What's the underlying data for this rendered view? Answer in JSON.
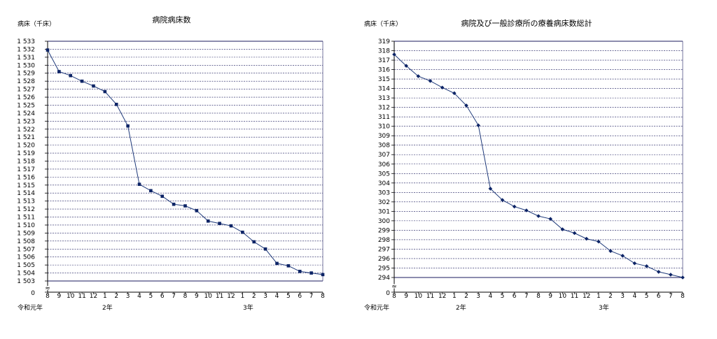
{
  "chart_data": [
    {
      "type": "line",
      "title": "病院病床数",
      "ylabel": "病床（千床）",
      "ylim": [
        1503,
        1533
      ],
      "axis_zero_label": "0",
      "y_ticks": [
        "1 503",
        "1 504",
        "1 505",
        "1 506",
        "1 507",
        "1 508",
        "1 509",
        "1 510",
        "1 511",
        "1 512",
        "1 513",
        "1 514",
        "1 515",
        "1 516",
        "1 517",
        "1 518",
        "1 519",
        "1 520",
        "1 521",
        "1 522",
        "1 523",
        "1 524",
        "1 525",
        "1 526",
        "1 527",
        "1 528",
        "1 529",
        "1 530",
        "1 531",
        "1 532",
        "1 533"
      ],
      "categories": [
        "8",
        "9",
        "10",
        "11",
        "12",
        "1",
        "2",
        "3",
        "4",
        "5",
        "6",
        "7",
        "8",
        "9",
        "10",
        "11",
        "12",
        "1",
        "2",
        "3",
        "4",
        "5",
        "6",
        "7",
        "8"
      ],
      "year_labels": [
        {
          "text": "令和元年",
          "index": 0
        },
        {
          "text": "2年",
          "index": 5
        },
        {
          "text": "3年",
          "index": 17
        }
      ],
      "grid": true,
      "series": [
        {
          "marker": "square",
          "values": [
            1531.9,
            1529.2,
            1528.7,
            1528.0,
            1527.4,
            1526.7,
            1525.1,
            1522.4,
            1515.1,
            1514.3,
            1513.6,
            1512.6,
            1512.4,
            1511.8,
            1510.5,
            1510.2,
            1509.9,
            1509.1,
            1507.9,
            1507.0,
            1505.2,
            1504.9,
            1504.2,
            1504.0,
            1503.8
          ]
        }
      ]
    },
    {
      "type": "line",
      "title": "病院及び一般診療所の療養病床数総計",
      "ylabel": "病床（千床）",
      "ylim": [
        294,
        319
      ],
      "axis_zero_label": "0",
      "y_ticks": [
        "294",
        "295",
        "296",
        "297",
        "298",
        "299",
        "300",
        "301",
        "302",
        "303",
        "304",
        "305",
        "306",
        "307",
        "308",
        "309",
        "310",
        "311",
        "312",
        "313",
        "314",
        "315",
        "316",
        "317",
        "318",
        "319"
      ],
      "categories": [
        "8",
        "9",
        "10",
        "11",
        "12",
        "1",
        "2",
        "3",
        "4",
        "5",
        "6",
        "7",
        "8",
        "9",
        "10",
        "11",
        "12",
        "1",
        "2",
        "3",
        "4",
        "5",
        "6",
        "7",
        "8"
      ],
      "year_labels": [
        {
          "text": "令和元年",
          "index": 0
        },
        {
          "text": "2年",
          "index": 5
        },
        {
          "text": "3年",
          "index": 17
        }
      ],
      "grid": true,
      "series": [
        {
          "marker": "diamond",
          "values": [
            317.6,
            316.4,
            315.3,
            314.8,
            314.1,
            313.5,
            312.2,
            310.1,
            303.4,
            302.2,
            301.5,
            301.1,
            300.5,
            300.2,
            299.1,
            298.7,
            298.1,
            297.8,
            296.8,
            296.3,
            295.5,
            295.2,
            294.6,
            294.3,
            294.0
          ]
        }
      ]
    }
  ],
  "colors": {
    "line": "#1f3a7a",
    "marker": "#0d2466",
    "grid": "#1a1a5e",
    "axis": "#000000"
  }
}
